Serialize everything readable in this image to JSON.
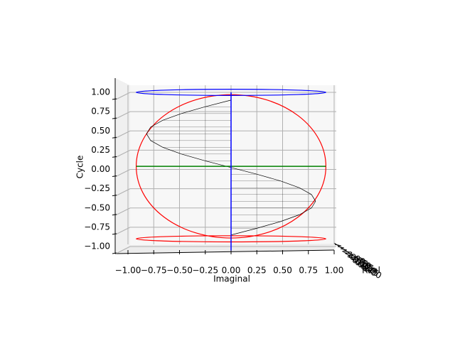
{
  "chart_data": {
    "type": "line3d",
    "xlabel": "Imaginal",
    "ylabel": "Cycle",
    "zlabel": "Real",
    "xlim": [
      -1.0,
      1.0
    ],
    "ylim": [
      -1.0,
      1.0
    ],
    "xticks": [
      {
        "value": -1,
        "label": "−1.00"
      },
      {
        "value": -0.75,
        "label": "−0.75"
      },
      {
        "value": -0.5,
        "label": "−0.50"
      },
      {
        "value": -0.25,
        "label": "−0.25"
      },
      {
        "value": 0,
        "label": "0.00"
      },
      {
        "value": 0.25,
        "label": "0.25"
      },
      {
        "value": 0.5,
        "label": "0.50"
      },
      {
        "value": 0.75,
        "label": "0.75"
      },
      {
        "value": 1,
        "label": "1.00"
      }
    ],
    "yticks": [
      {
        "value": -1,
        "label": "−1.00"
      },
      {
        "value": -0.75,
        "label": "−0.75"
      },
      {
        "value": -0.5,
        "label": "−0.50"
      },
      {
        "value": -0.25,
        "label": "−0.25"
      },
      {
        "value": 0,
        "label": "0.00"
      },
      {
        "value": 0.25,
        "label": "0.25"
      },
      {
        "value": 0.5,
        "label": "0.50"
      },
      {
        "value": 0.75,
        "label": "0.75"
      },
      {
        "value": 1,
        "label": "1.00"
      }
    ],
    "zticks": [
      {
        "value": -1,
        "label": "−1.00"
      },
      {
        "value": -0.75,
        "label": "−0.75"
      },
      {
        "value": -0.5,
        "label": "−0.50"
      },
      {
        "value": -0.25,
        "label": "−0.25"
      },
      {
        "value": 0,
        "label": "0.00"
      },
      {
        "value": 0.25,
        "label": "0.25"
      },
      {
        "value": 0.5,
        "label": "0.50"
      },
      {
        "value": 0.75,
        "label": "0.75"
      },
      {
        "value": 1,
        "label": "1.00"
      }
    ],
    "grid": true,
    "series": [
      {
        "color": "#000000",
        "hatch": true,
        "x": [
          0,
          -0.253,
          -0.482,
          -0.663,
          -0.78,
          -0.82,
          -0.78,
          -0.663,
          -0.482,
          -0.253,
          0,
          0.253,
          0.482,
          0.663,
          0.78,
          0.82,
          0.78,
          0.663,
          0.482,
          0.253,
          0
        ],
        "values": [
          0.9,
          0.8125,
          0.725,
          0.6375,
          0.55,
          0.4625,
          0.375,
          0.2875,
          0.2,
          0.1125,
          0.025,
          -0.0625,
          -0.15,
          -0.2375,
          -0.325,
          -0.4125,
          -0.5,
          -0.5875,
          -0.675,
          -0.7625,
          -0.85
        ]
      },
      {
        "color": "#008000",
        "x": [
          -0.92,
          0.92
        ],
        "values": [
          0.04,
          0.04
        ]
      },
      {
        "color": "#0000ff",
        "x": [
          0,
          0
        ],
        "values": [
          1.0,
          -1.05
        ]
      }
    ],
    "ellipses": [
      {
        "cx": 0,
        "cy": 0.04,
        "rx": 0.92,
        "ry": 0.93,
        "color": "#ff0000"
      },
      {
        "cx": 0,
        "cy": 1.0,
        "rx": 0.92,
        "ry": 0.04,
        "color": "#0000ff"
      },
      {
        "cx": 0,
        "cy": -0.9,
        "rx": 0.92,
        "ry": 0.04,
        "color": "#ff0000"
      }
    ]
  }
}
